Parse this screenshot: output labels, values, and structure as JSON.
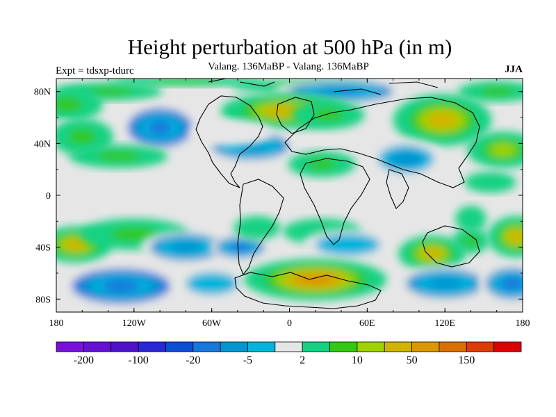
{
  "chart_data": {
    "type": "heatmap",
    "title": "Height perturbation at 500 hPa (in m)",
    "subtitle": "Valang. 136MaBP - Valang.  136MaBP",
    "left_label": "Expt = tdsxp-tdurc",
    "right_label": "JJA",
    "x_range": [
      -180,
      180
    ],
    "y_range": [
      -90,
      90
    ],
    "x_ticks": [
      {
        "value": -180,
        "label": "180"
      },
      {
        "value": -120,
        "label": "120W"
      },
      {
        "value": -60,
        "label": "60W"
      },
      {
        "value": 0,
        "label": "0"
      },
      {
        "value": 60,
        "label": "60E"
      },
      {
        "value": 120,
        "label": "120E"
      },
      {
        "value": 180,
        "label": "180"
      }
    ],
    "y_ticks": [
      {
        "value": 80,
        "label": "80N"
      },
      {
        "value": 40,
        "label": "40N"
      },
      {
        "value": 0,
        "label": "0"
      },
      {
        "value": -40,
        "label": "40S"
      },
      {
        "value": -80,
        "label": "80S"
      }
    ],
    "colorbar": {
      "colors": [
        "#7a10dc",
        "#6410d2",
        "#5012c8",
        "#2828d4",
        "#0a50d2",
        "#1478dc",
        "#0096d2",
        "#00b4dc",
        "#e6e6e6",
        "#14d282",
        "#32c814",
        "#a0d200",
        "#d2b400",
        "#dc9600",
        "#dc6e00",
        "#dc3c00",
        "#dc0000"
      ],
      "labels": [
        {
          "index": 1,
          "label": "-200"
        },
        {
          "index": 3,
          "label": "-100"
        },
        {
          "index": 5,
          "label": "-20"
        },
        {
          "index": 7,
          "label": "-5"
        },
        {
          "index": 9,
          "label": "2"
        },
        {
          "index": 11,
          "label": "10"
        },
        {
          "index": 13,
          "label": "50"
        },
        {
          "index": 15,
          "label": "150"
        }
      ]
    },
    "features": [
      {
        "lon": -138,
        "lat": 80,
        "value": 8,
        "rlon": 40,
        "rlat": 7
      },
      {
        "lon": -80,
        "lat": 88,
        "value": 8,
        "rlon": 60,
        "rlat": 4
      },
      {
        "lon": 10,
        "lat": 84,
        "value": 6,
        "rlon": 55,
        "rlat": 5
      },
      {
        "lon": 40,
        "lat": 80,
        "value": -12,
        "rlon": 52,
        "rlat": 10
      },
      {
        "lon": 115,
        "lat": 80,
        "value": -4,
        "rlon": 35,
        "rlat": 6
      },
      {
        "lon": -172,
        "lat": 70,
        "value": 8,
        "rlon": 28,
        "rlat": 13
      },
      {
        "lon": -175,
        "lat": 50,
        "value": -4,
        "rlon": 12,
        "rlat": 8
      },
      {
        "lon": -160,
        "lat": 45,
        "value": 6,
        "rlon": 24,
        "rlat": 14
      },
      {
        "lon": -100,
        "lat": 52,
        "value": -22,
        "rlon": 30,
        "rlat": 18
      },
      {
        "lon": -132,
        "lat": 30,
        "value": 8,
        "rlon": 38,
        "rlat": 9
      },
      {
        "lon": -5,
        "lat": 65,
        "value": 40,
        "rlon": 48,
        "rlat": 14
      },
      {
        "lon": -30,
        "lat": 38,
        "value": -18,
        "rlon": 38,
        "rlat": 13
      },
      {
        "lon": -45,
        "lat": 48,
        "value": -4,
        "rlon": 32,
        "rlat": 10
      },
      {
        "lon": 30,
        "lat": 62,
        "value": 8,
        "rlon": 28,
        "rlat": 11
      },
      {
        "lon": 25,
        "lat": 24,
        "value": 8,
        "rlon": 26,
        "rlat": 10
      },
      {
        "lon": 118,
        "lat": 58,
        "value": 30,
        "rlon": 38,
        "rlat": 20
      },
      {
        "lon": 90,
        "lat": 28,
        "value": -10,
        "rlon": 30,
        "rlat": 15
      },
      {
        "lon": 165,
        "lat": 35,
        "value": 14,
        "rlon": 28,
        "rlat": 14
      },
      {
        "lon": 160,
        "lat": 80,
        "value": 6,
        "rlon": 30,
        "rlat": 8
      },
      {
        "lon": 155,
        "lat": 10,
        "value": 4,
        "rlon": 20,
        "rlat": 8
      },
      {
        "lon": 140,
        "lat": -18,
        "value": 4,
        "rlon": 12,
        "rlat": 10
      },
      {
        "lon": -165,
        "lat": -38,
        "value": 30,
        "rlon": 28,
        "rlat": 14
      },
      {
        "lon": -120,
        "lat": -30,
        "value": 8,
        "rlon": 42,
        "rlat": 12
      },
      {
        "lon": -80,
        "lat": -40,
        "value": -12,
        "rlon": 35,
        "rlat": 13
      },
      {
        "lon": -38,
        "lat": -40,
        "value": -20,
        "rlon": 24,
        "rlat": 10
      },
      {
        "lon": -25,
        "lat": -25,
        "value": 5,
        "rlon": 18,
        "rlat": 9
      },
      {
        "lon": 25,
        "lat": -28,
        "value": 5,
        "rlon": 30,
        "rlat": 10
      },
      {
        "lon": 45,
        "lat": -38,
        "value": -8,
        "rlon": 35,
        "rlat": 12
      },
      {
        "lon": 110,
        "lat": -45,
        "value": 30,
        "rlon": 26,
        "rlat": 14
      },
      {
        "lon": 140,
        "lat": -35,
        "value": 8,
        "rlon": 14,
        "rlat": 10
      },
      {
        "lon": 175,
        "lat": -32,
        "value": 30,
        "rlon": 22,
        "rlat": 16
      },
      {
        "lon": -130,
        "lat": -70,
        "value": -28,
        "rlon": 46,
        "rlat": 16
      },
      {
        "lon": -60,
        "lat": -68,
        "value": -8,
        "rlon": 28,
        "rlat": 12
      },
      {
        "lon": 20,
        "lat": -65,
        "value": 60,
        "rlon": 55,
        "rlat": 16
      },
      {
        "lon": 120,
        "lat": -68,
        "value": -12,
        "rlon": 38,
        "rlat": 14
      },
      {
        "lon": 172,
        "lat": -68,
        "value": -20,
        "rlon": 26,
        "rlat": 15
      }
    ]
  }
}
